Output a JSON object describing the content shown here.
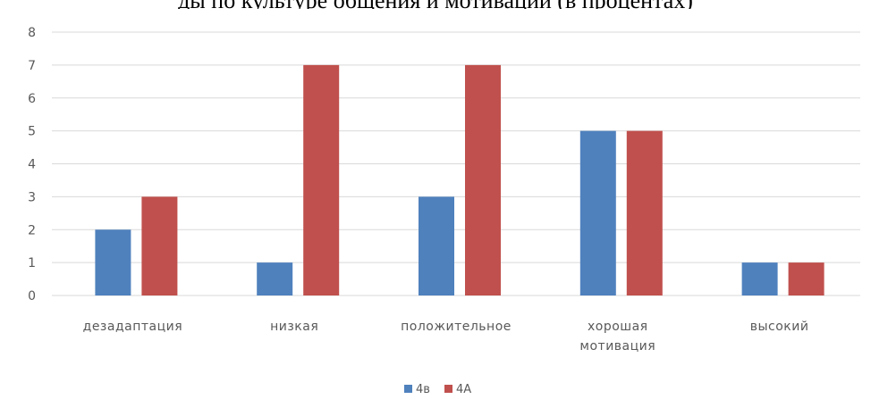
{
  "header_fragment": "ды по культуре общения и мотивации (в процентах)",
  "chart_data": {
    "type": "bar",
    "categories": [
      [
        "дезадаптация"
      ],
      [
        "низкая"
      ],
      [
        "положительное"
      ],
      [
        "хорошая",
        "мотивация"
      ],
      [
        "высокий"
      ]
    ],
    "series": [
      {
        "name": "4в",
        "color": "#4f81bd",
        "values": [
          2,
          1,
          3,
          5,
          1
        ]
      },
      {
        "name": "4А",
        "color": "#c0504d",
        "values": [
          3,
          7,
          7,
          5,
          1
        ]
      }
    ],
    "yticks": [
      0,
      1,
      2,
      3,
      4,
      5,
      6,
      7,
      8
    ],
    "ylim": [
      0,
      8
    ],
    "grid": true,
    "legend": "bottom-center",
    "title": "",
    "xlabel": "",
    "ylabel": ""
  }
}
